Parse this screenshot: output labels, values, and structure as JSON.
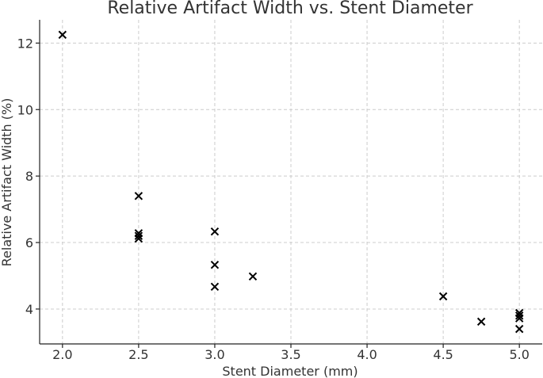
{
  "chart_data": {
    "type": "scatter",
    "title": "Relative Artifact Width vs. Stent Diameter",
    "xlabel": "Stent Diameter (mm)",
    "ylabel": "Relative Artifact Width (%)",
    "xlim": [
      1.85,
      5.15
    ],
    "ylim": [
      2.95,
      12.7
    ],
    "xticks": [
      2.0,
      2.5,
      3.0,
      3.5,
      4.0,
      4.5,
      5.0
    ],
    "xtick_labels": [
      "2.0",
      "2.5",
      "3.0",
      "3.5",
      "4.0",
      "4.5",
      "5.0"
    ],
    "yticks": [
      4,
      6,
      8,
      10,
      12
    ],
    "ytick_labels": [
      "4",
      "6",
      "8",
      "10",
      "12"
    ],
    "grid": true,
    "marker": "x",
    "marker_color": "#000000",
    "points": [
      {
        "x": 2.0,
        "y": 12.25
      },
      {
        "x": 2.5,
        "y": 7.4
      },
      {
        "x": 2.5,
        "y": 6.28
      },
      {
        "x": 2.5,
        "y": 6.2
      },
      {
        "x": 2.5,
        "y": 6.12
      },
      {
        "x": 3.0,
        "y": 6.33
      },
      {
        "x": 3.0,
        "y": 5.33
      },
      {
        "x": 3.0,
        "y": 4.67
      },
      {
        "x": 3.25,
        "y": 4.98
      },
      {
        "x": 4.5,
        "y": 4.38
      },
      {
        "x": 4.75,
        "y": 3.62
      },
      {
        "x": 5.0,
        "y": 3.88
      },
      {
        "x": 5.0,
        "y": 3.8
      },
      {
        "x": 5.0,
        "y": 3.72
      },
      {
        "x": 5.0,
        "y": 3.4
      }
    ]
  }
}
